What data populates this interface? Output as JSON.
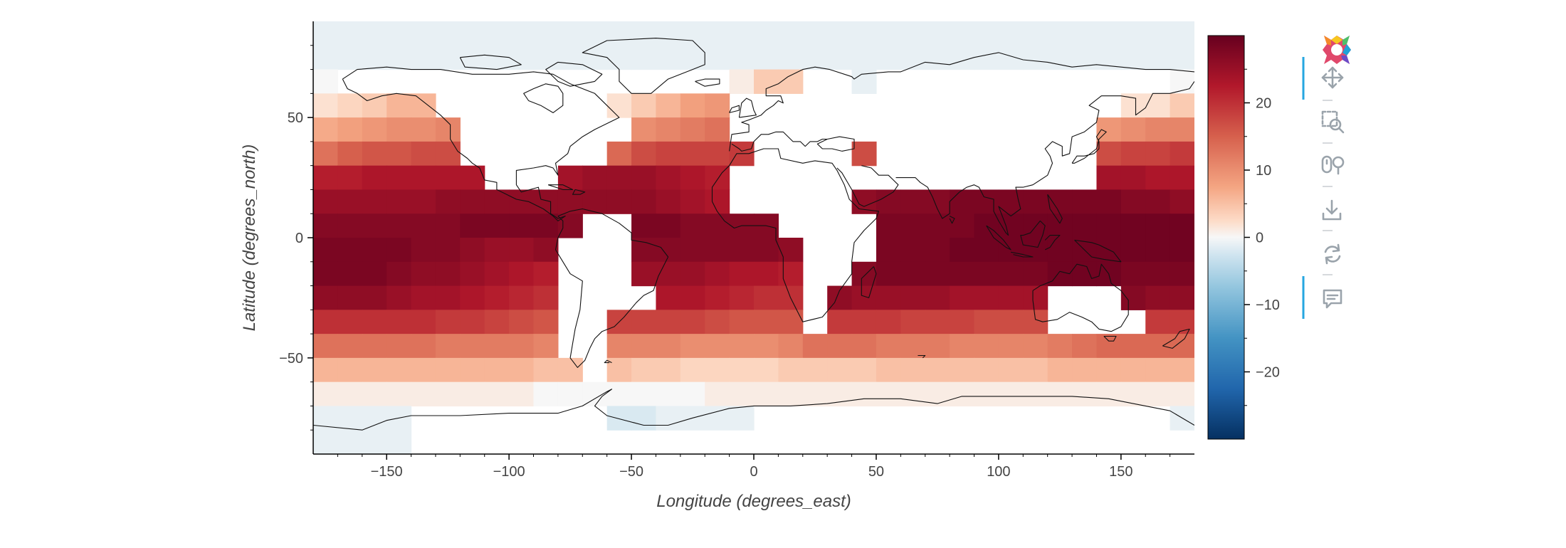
{
  "chart_data": {
    "type": "heatmap",
    "xlabel": "Longitude (degrees_east)",
    "ylabel": "Latitude (degrees_north)",
    "xlim": [
      -180,
      180
    ],
    "ylim": [
      -90,
      90
    ],
    "x_ticks": [
      -150,
      -100,
      -50,
      0,
      50,
      100,
      150
    ],
    "y_ticks": [
      50,
      0,
      -50
    ],
    "x_tick_labels": [
      "−150",
      "−100",
      "−50",
      "0",
      "50",
      "100",
      "150"
    ],
    "y_tick_labels": [
      "50",
      "0",
      "−50"
    ],
    "cell_size_degrees": 10,
    "cell_columns": [
      -175,
      -165,
      -155,
      -145,
      -135,
      -125,
      -115,
      -105,
      -95,
      -85,
      -75,
      -65,
      -55,
      -45,
      -35,
      -25,
      -15,
      -5,
      5,
      15,
      25,
      35,
      45,
      55,
      65,
      75,
      85,
      95,
      105,
      115,
      125,
      135,
      145,
      155,
      165,
      175
    ],
    "rows": [
      {
        "lat": 85,
        "values": [
          -1,
          -1,
          -1,
          -1,
          -1,
          -1,
          -1,
          -1,
          -1,
          -1,
          -1,
          -1,
          -1,
          -1,
          -1,
          -1,
          -1,
          -1,
          -1,
          -1,
          -1,
          -1,
          -1,
          -1,
          -1,
          -1,
          -1,
          -1,
          -1,
          -1,
          -1,
          -1,
          -1,
          -1,
          -1,
          -1
        ]
      },
      {
        "lat": 75,
        "values": [
          -1,
          -1,
          -1,
          -1,
          -1,
          -1,
          -1,
          -1,
          -1,
          -1,
          -1,
          -1,
          -1,
          -1,
          -1,
          -1,
          -1,
          -1,
          -1,
          -1,
          -1,
          -1,
          -1,
          -1,
          -1,
          -1,
          -1,
          -1,
          -1,
          -1,
          -1,
          -1,
          -1,
          -1,
          -1,
          -1
        ]
      },
      {
        "lat": 65,
        "values": [
          0,
          null,
          null,
          null,
          null,
          null,
          null,
          null,
          null,
          null,
          null,
          null,
          null,
          null,
          null,
          null,
          null,
          1,
          4,
          4,
          null,
          null,
          -1,
          null,
          null,
          null,
          null,
          null,
          null,
          null,
          null,
          null,
          null,
          null,
          null,
          0
        ]
      },
      {
        "lat": 55,
        "values": [
          2,
          3,
          4,
          6,
          6,
          null,
          null,
          null,
          null,
          null,
          null,
          null,
          2,
          4,
          6,
          8,
          9,
          null,
          null,
          null,
          null,
          null,
          null,
          null,
          null,
          null,
          null,
          null,
          null,
          null,
          null,
          null,
          null,
          2,
          2,
          4
        ]
      },
      {
        "lat": 45,
        "values": [
          7,
          8,
          9,
          10,
          10,
          11,
          null,
          null,
          null,
          null,
          null,
          null,
          null,
          10,
          11,
          12,
          13,
          null,
          null,
          null,
          null,
          null,
          null,
          null,
          null,
          null,
          null,
          null,
          null,
          null,
          null,
          null,
          9,
          10,
          11,
          11
        ]
      },
      {
        "lat": 35,
        "values": [
          13,
          15,
          16,
          16,
          17,
          17,
          null,
          null,
          null,
          null,
          null,
          null,
          14,
          17,
          18,
          18,
          18,
          19,
          null,
          null,
          null,
          null,
          17,
          null,
          null,
          null,
          null,
          null,
          null,
          null,
          null,
          null,
          17,
          18,
          18,
          19
        ]
      },
      {
        "lat": 25,
        "values": [
          22,
          22,
          23,
          23,
          23,
          23,
          23,
          null,
          null,
          null,
          24,
          25,
          25,
          25,
          24,
          23,
          22,
          null,
          null,
          null,
          null,
          null,
          null,
          null,
          null,
          null,
          null,
          null,
          null,
          null,
          null,
          null,
          24,
          24,
          23,
          23
        ]
      },
      {
        "lat": 15,
        "values": [
          25,
          25,
          25,
          25,
          25,
          26,
          26,
          26,
          26,
          26,
          26,
          26,
          26,
          26,
          25,
          24,
          23,
          null,
          null,
          null,
          null,
          null,
          26,
          27,
          27,
          27,
          28,
          28,
          28,
          28,
          28,
          28,
          28,
          27,
          27,
          26
        ]
      },
      {
        "lat": 5,
        "values": [
          27,
          27,
          27,
          27,
          27,
          27,
          28,
          28,
          28,
          28,
          27,
          null,
          null,
          28,
          28,
          27,
          27,
          27,
          27,
          null,
          null,
          null,
          null,
          28,
          28,
          28,
          28,
          29,
          29,
          29,
          29,
          29,
          29,
          29,
          29,
          29
        ]
      },
      {
        "lat": -5,
        "values": [
          28,
          28,
          28,
          28,
          27,
          27,
          26,
          25,
          25,
          26,
          null,
          null,
          null,
          27,
          27,
          27,
          27,
          27,
          27,
          26,
          null,
          null,
          null,
          28,
          28,
          28,
          29,
          29,
          29,
          29,
          29,
          29,
          29,
          29,
          29,
          29
        ]
      },
      {
        "lat": -15,
        "values": [
          28,
          28,
          28,
          27,
          26,
          26,
          25,
          24,
          23,
          22,
          null,
          null,
          null,
          25,
          25,
          25,
          24,
          23,
          23,
          22,
          null,
          null,
          27,
          28,
          28,
          28,
          28,
          28,
          28,
          28,
          29,
          29,
          29,
          28,
          28,
          28
        ]
      },
      {
        "lat": -25,
        "values": [
          26,
          26,
          26,
          25,
          24,
          24,
          23,
          22,
          21,
          20,
          null,
          null,
          null,
          null,
          23,
          23,
          22,
          21,
          20,
          20,
          null,
          26,
          25,
          25,
          25,
          25,
          24,
          24,
          24,
          24,
          null,
          null,
          null,
          27,
          26,
          26
        ]
      },
      {
        "lat": -35,
        "values": [
          20,
          20,
          20,
          20,
          20,
          19,
          19,
          18,
          17,
          16,
          null,
          null,
          18,
          18,
          18,
          18,
          17,
          16,
          16,
          16,
          null,
          19,
          19,
          19,
          18,
          18,
          18,
          17,
          17,
          17,
          null,
          null,
          null,
          null,
          19,
          19
        ]
      },
      {
        "lat": -45,
        "values": [
          13,
          13,
          13,
          13,
          13,
          12,
          12,
          12,
          12,
          11,
          null,
          null,
          11,
          11,
          11,
          10,
          10,
          10,
          10,
          11,
          13,
          13,
          13,
          12,
          12,
          12,
          11,
          11,
          11,
          11,
          12,
          13,
          14,
          14,
          14,
          14
        ]
      },
      {
        "lat": -55,
        "values": [
          6,
          6,
          6,
          6,
          6,
          6,
          6,
          6,
          6,
          5,
          5,
          null,
          5,
          4,
          4,
          3,
          3,
          3,
          3,
          4,
          4,
          4,
          4,
          5,
          5,
          5,
          5,
          5,
          5,
          5,
          6,
          6,
          6,
          6,
          6,
          6
        ]
      },
      {
        "lat": -65,
        "values": [
          1,
          1,
          1,
          1,
          1,
          1,
          1,
          1,
          1,
          0,
          0,
          0,
          0,
          0,
          0,
          0,
          1,
          1,
          1,
          1,
          1,
          1,
          1,
          1,
          1,
          1,
          1,
          1,
          1,
          1,
          1,
          1,
          1,
          1,
          1,
          1
        ]
      },
      {
        "lat": -75,
        "values": [
          -1,
          -1,
          -1,
          -1,
          null,
          null,
          null,
          null,
          null,
          null,
          null,
          null,
          -2,
          -2,
          -1,
          -1,
          -1,
          -1,
          null,
          null,
          null,
          null,
          null,
          null,
          null,
          null,
          null,
          null,
          null,
          null,
          null,
          null,
          null,
          null,
          null,
          -1
        ]
      },
      {
        "lat": -85,
        "values": [
          -1,
          -1,
          -1,
          -1,
          null,
          null,
          null,
          null,
          null,
          null,
          null,
          null,
          null,
          null,
          null,
          null,
          null,
          null,
          null,
          null,
          null,
          null,
          null,
          null,
          null,
          null,
          null,
          null,
          null,
          null,
          null,
          null,
          null,
          null,
          null,
          null
        ]
      }
    ],
    "colorbar": {
      "colormap": "RdBu_r",
      "range": [
        -30,
        30
      ],
      "ticks": [
        20,
        10,
        0,
        -10,
        -20
      ],
      "tick_labels": [
        "20",
        "10",
        "0",
        "−10",
        "−20"
      ]
    },
    "colormap_stops": [
      {
        "v": -30,
        "c": "#053061"
      },
      {
        "v": -22.5,
        "c": "#2166ac"
      },
      {
        "v": -15,
        "c": "#4393c3"
      },
      {
        "v": -7.5,
        "c": "#92c5de"
      },
      {
        "v": -2.5,
        "c": "#d1e5f0"
      },
      {
        "v": 0,
        "c": "#f7f7f7"
      },
      {
        "v": 2.5,
        "c": "#fddbc7"
      },
      {
        "v": 7.5,
        "c": "#f4a582"
      },
      {
        "v": 15,
        "c": "#d6604d"
      },
      {
        "v": 22.5,
        "c": "#b2182b"
      },
      {
        "v": 30,
        "c": "#67001f"
      }
    ],
    "grid": false,
    "legend": "colorbar-right",
    "coastlines": true
  },
  "toolbar": {
    "tools": [
      {
        "name": "bokeh-logo-icon",
        "active": false
      },
      {
        "name": "pan-icon",
        "active": true
      },
      {
        "name": "box-zoom-icon",
        "active": false
      },
      {
        "name": "wheel-zoom-icon",
        "active": false
      },
      {
        "name": "save-icon",
        "active": false
      },
      {
        "name": "reset-icon",
        "active": false
      },
      {
        "name": "hover-icon",
        "active": true
      }
    ],
    "active_color": "#26a6e0"
  }
}
